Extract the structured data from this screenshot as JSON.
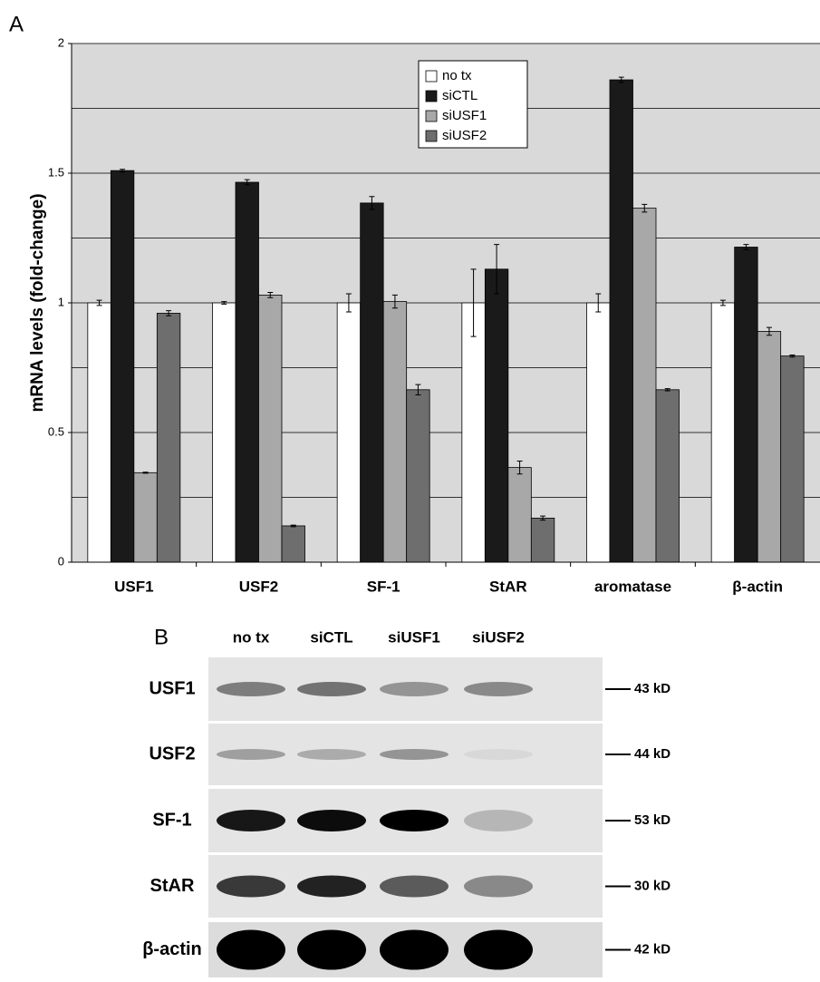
{
  "panel_labels": {
    "a": "A",
    "b": "B"
  },
  "chart_data": {
    "type": "bar",
    "y_label": "mRNA levels (fold-change)",
    "categories": [
      "USF1",
      "USF2",
      "SF-1",
      "StAR",
      "aromatase",
      "β-actin"
    ],
    "series": [
      {
        "name": "no tx",
        "color": "#ffffff",
        "values": [
          1.0,
          1.0,
          1.0,
          1.0,
          1.0,
          1.0
        ],
        "errors": [
          0.01,
          0.005,
          0.035,
          0.13,
          0.035,
          0.01
        ]
      },
      {
        "name": "siCTL",
        "color": "#1a1a1a",
        "values": [
          1.51,
          1.465,
          1.385,
          1.13,
          1.86,
          1.215
        ],
        "errors": [
          0.005,
          0.01,
          0.025,
          0.095,
          0.01,
          0.01
        ]
      },
      {
        "name": "siUSF1",
        "color": "#a8a8a8",
        "values": [
          0.345,
          1.03,
          1.005,
          0.365,
          1.365,
          0.89
        ],
        "errors": [
          0.002,
          0.01,
          0.025,
          0.025,
          0.015,
          0.015
        ]
      },
      {
        "name": "siUSF2",
        "color": "#6e6e6e",
        "values": [
          0.96,
          0.14,
          0.665,
          0.17,
          0.665,
          0.795
        ],
        "errors": [
          0.01,
          0.003,
          0.02,
          0.008,
          0.004,
          0.004
        ]
      }
    ],
    "ylim": [
      0,
      2
    ],
    "yticks": [
      0,
      0.5,
      1,
      1.5,
      2
    ],
    "minor_yticks": [
      0.25,
      0.75,
      1.25,
      1.75
    ],
    "grid": true
  },
  "blot": {
    "lanes": [
      "no tx",
      "siCTL",
      "siUSF1",
      "siUSF2"
    ],
    "rows": [
      {
        "label": "USF1",
        "size": "43 kD"
      },
      {
        "label": "USF2",
        "size": "44 kD"
      },
      {
        "label": "SF-1",
        "size": "53 kD"
      },
      {
        "label": "StAR",
        "size": "30 kD"
      },
      {
        "label": "β-actin",
        "size": "42 kD"
      }
    ]
  }
}
